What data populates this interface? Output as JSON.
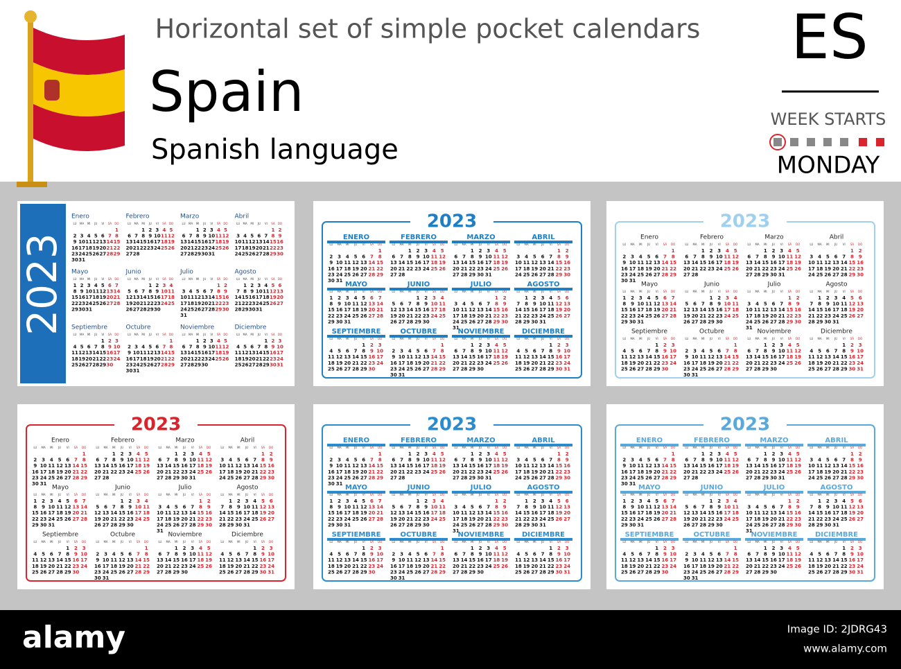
{
  "header": {
    "title": "Horizontal set of simple pocket calendars",
    "country": "Spain",
    "language": "Spanish language",
    "code": "ES",
    "week_starts": "WEEK STARTS",
    "week_day": "MONDAY"
  },
  "weekdays": [
    "LU",
    "MA",
    "MI",
    "JU",
    "VI",
    "SÁ",
    "DO"
  ],
  "calendar": [
    [
      [
        null,
        null,
        null,
        null,
        null,
        null,
        1
      ],
      [
        2,
        3,
        4,
        5,
        6,
        7,
        8
      ],
      [
        9,
        10,
        11,
        12,
        13,
        14,
        15
      ],
      [
        16,
        17,
        18,
        19,
        20,
        21,
        22
      ],
      [
        23,
        24,
        25,
        26,
        27,
        28,
        29
      ],
      [
        30,
        31
      ]
    ],
    [
      [
        null,
        null,
        1,
        2,
        3,
        4,
        5
      ],
      [
        6,
        7,
        8,
        9,
        10,
        11,
        12
      ],
      [
        13,
        14,
        15,
        16,
        17,
        18,
        19
      ],
      [
        20,
        21,
        22,
        23,
        24,
        25,
        26
      ],
      [
        27,
        28
      ]
    ],
    [
      [
        null,
        null,
        1,
        2,
        3,
        4,
        5
      ],
      [
        6,
        7,
        8,
        9,
        10,
        11,
        12
      ],
      [
        13,
        14,
        15,
        16,
        17,
        18,
        19
      ],
      [
        20,
        21,
        22,
        23,
        24,
        25,
        26
      ],
      [
        27,
        28,
        29,
        30,
        31
      ]
    ],
    [
      [
        null,
        null,
        null,
        null,
        null,
        1,
        2
      ],
      [
        3,
        4,
        5,
        6,
        7,
        8,
        9
      ],
      [
        10,
        11,
        12,
        13,
        14,
        15,
        16
      ],
      [
        17,
        18,
        19,
        20,
        21,
        22,
        23
      ],
      [
        24,
        25,
        26,
        27,
        28,
        29,
        30
      ]
    ],
    [
      [
        1,
        2,
        3,
        4,
        5,
        6,
        7
      ],
      [
        8,
        9,
        10,
        11,
        12,
        13,
        14
      ],
      [
        15,
        16,
        17,
        18,
        19,
        20,
        21
      ],
      [
        22,
        23,
        24,
        25,
        26,
        27,
        28
      ],
      [
        29,
        30,
        31
      ]
    ],
    [
      [
        null,
        null,
        null,
        1,
        2,
        3,
        4
      ],
      [
        5,
        6,
        7,
        8,
        9,
        10,
        11
      ],
      [
        12,
        13,
        14,
        15,
        16,
        17,
        18
      ],
      [
        19,
        20,
        21,
        22,
        23,
        24,
        25
      ],
      [
        26,
        27,
        28,
        29,
        30
      ]
    ],
    [
      [
        null,
        null,
        null,
        null,
        null,
        1,
        2
      ],
      [
        3,
        4,
        5,
        6,
        7,
        8,
        9
      ],
      [
        10,
        11,
        12,
        13,
        14,
        15,
        16
      ],
      [
        17,
        18,
        19,
        20,
        21,
        22,
        23
      ],
      [
        24,
        25,
        26,
        27,
        28,
        29,
        30
      ],
      [
        31
      ]
    ],
    [
      [
        null,
        1,
        2,
        3,
        4,
        5,
        6
      ],
      [
        7,
        8,
        9,
        10,
        11,
        12,
        13
      ],
      [
        14,
        15,
        16,
        17,
        18,
        19,
        20
      ],
      [
        21,
        22,
        23,
        24,
        25,
        26,
        27
      ],
      [
        28,
        29,
        30,
        31
      ]
    ],
    [
      [
        null,
        null,
        null,
        null,
        1,
        2,
        3
      ],
      [
        4,
        5,
        6,
        7,
        8,
        9,
        10
      ],
      [
        11,
        12,
        13,
        14,
        15,
        16,
        17
      ],
      [
        18,
        19,
        20,
        21,
        22,
        23,
        24
      ],
      [
        25,
        26,
        27,
        28,
        29,
        30
      ]
    ],
    [
      [
        null,
        null,
        null,
        null,
        null,
        null,
        1
      ],
      [
        2,
        3,
        4,
        5,
        6,
        7,
        8
      ],
      [
        9,
        10,
        11,
        12,
        13,
        14,
        15
      ],
      [
        16,
        17,
        18,
        19,
        20,
        21,
        22
      ],
      [
        23,
        24,
        25,
        26,
        27,
        28,
        29
      ],
      [
        30,
        31
      ]
    ],
    [
      [
        null,
        null,
        1,
        2,
        3,
        4,
        5
      ],
      [
        6,
        7,
        8,
        9,
        10,
        11,
        12
      ],
      [
        13,
        14,
        15,
        16,
        17,
        18,
        19
      ],
      [
        20,
        21,
        22,
        23,
        24,
        25,
        26
      ],
      [
        27,
        28,
        29,
        30
      ]
    ],
    [
      [
        null,
        null,
        null,
        null,
        1,
        2,
        3
      ],
      [
        4,
        5,
        6,
        7,
        8,
        9,
        10
      ],
      [
        11,
        12,
        13,
        14,
        15,
        16,
        17
      ],
      [
        18,
        19,
        20,
        21,
        22,
        23,
        24
      ],
      [
        25,
        26,
        27,
        28,
        29,
        30,
        31
      ]
    ]
  ],
  "cards": [
    {
      "theme": "strip",
      "accent": "#1e6fb9",
      "year": "2023",
      "months": [
        "Enero",
        "Febrero",
        "Marzo",
        "Abril",
        "Mayo",
        "Junio",
        "Julio",
        "Agosto",
        "Septiembre",
        "Octubre",
        "Noviembre",
        "Diciembre"
      ]
    },
    {
      "theme": "bar",
      "accent": "#1e7fc4",
      "year": "2023",
      "months": [
        "ENERO",
        "FEBRERO",
        "MARZO",
        "ABRIL",
        "MAYO",
        "JUNIO",
        "JULIO",
        "AGOSTO",
        "SEPTIEMBRE",
        "OCTUBRE",
        "NOVIEMBRE",
        "DICIEMBRE"
      ]
    },
    {
      "theme": "plain",
      "accent": "#9fd0ee",
      "year": "2023",
      "months": [
        "Enero",
        "Febrero",
        "Marzo",
        "Abril",
        "Mayo",
        "Junio",
        "Julio",
        "Agosto",
        "Septiembre",
        "Octubre",
        "Noviembre",
        "Diciembre"
      ]
    },
    {
      "theme": "plain",
      "accent": "#d9242e",
      "year": "2023",
      "months": [
        "Enero",
        "Febrero",
        "Marzo",
        "Abril",
        "Mayo",
        "Junio",
        "Julio",
        "Agosto",
        "Septiembre",
        "Octubre",
        "Noviembre",
        "Diciembre"
      ]
    },
    {
      "theme": "bar",
      "accent": "#2a8ccf",
      "year": "2023",
      "months": [
        "ENERO",
        "FEBRERO",
        "MARZO",
        "ABRIL",
        "MAYO",
        "JUNIO",
        "JULIO",
        "AGOSTO",
        "SEPTIEMBRE",
        "OCTUBRE",
        "NOVIEMBRE",
        "DICIEMBRE"
      ]
    },
    {
      "theme": "bar",
      "accent": "#5aa9dc",
      "year": "2023",
      "months": [
        "ENERO",
        "FEBRERO",
        "MARZO",
        "ABRIL",
        "MAYO",
        "JUNIO",
        "JULIO",
        "AGOSTO",
        "SEPTIEMBRE",
        "OCTUBRE",
        "NOVIEMBRE",
        "DICIEMBRE"
      ]
    }
  ],
  "footer": {
    "logo": "alamy",
    "image_id": "Image ID: 2JDRG43",
    "url": "www.alamy.com"
  }
}
